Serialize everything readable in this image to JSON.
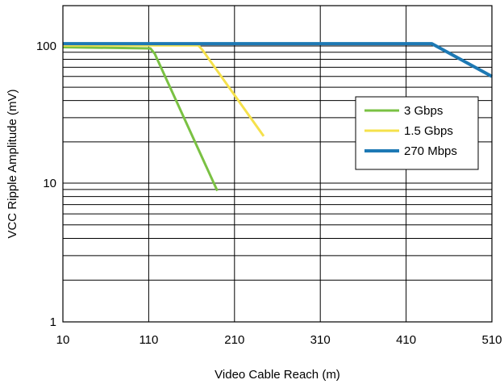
{
  "chart_data": {
    "type": "line",
    "xlabel": "Video Cable Reach (m)",
    "ylabel": "VCC Ripple Amplitude (mV)",
    "xlim": [
      10,
      510
    ],
    "ylim": [
      1,
      200
    ],
    "yscale": "log",
    "grid": true,
    "x_ticks": [
      "10",
      "110",
      "210",
      "310",
      "410",
      "510"
    ],
    "y_ticks": [
      "1",
      "10",
      "100"
    ],
    "legend_position": "right",
    "series": [
      {
        "name": "3 Gbps",
        "color": "#7ac143",
        "x": [
          10,
          112,
          117,
          190
        ],
        "y": [
          98,
          96,
          88,
          8.8
        ]
      },
      {
        "name": "1.5 Gbps",
        "color": "#f5e14b",
        "x": [
          10,
          168,
          173,
          244
        ],
        "y": [
          101,
          101,
          93,
          22
        ]
      },
      {
        "name": "270 Mbps",
        "color": "#1d79b4",
        "x": [
          10,
          440,
          510
        ],
        "y": [
          104,
          104,
          60
        ]
      }
    ]
  }
}
